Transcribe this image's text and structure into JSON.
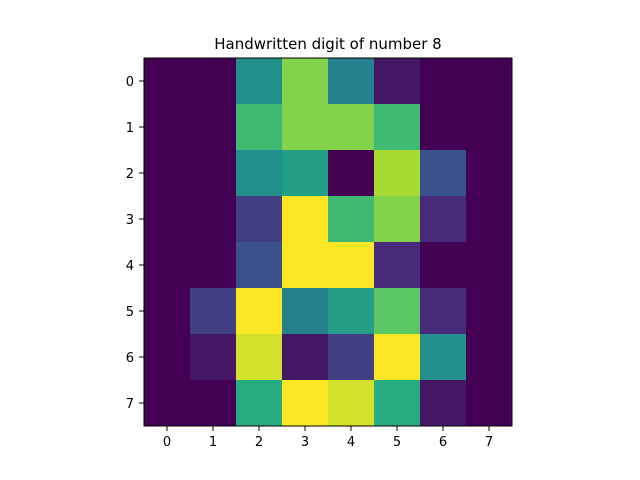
{
  "chart_data": {
    "type": "heatmap",
    "title": "Handwritten digit of number 8",
    "xlabel": "",
    "ylabel": "",
    "x_ticks": [
      "0",
      "1",
      "2",
      "3",
      "4",
      "5",
      "6",
      "7"
    ],
    "y_ticks": [
      "0",
      "1",
      "2",
      "3",
      "4",
      "5",
      "6",
      "7"
    ],
    "colormap": "viridis",
    "value_range": [
      0,
      16
    ],
    "grid": false,
    "values": [
      [
        0,
        0,
        8,
        13,
        7,
        1,
        0,
        0
      ],
      [
        0,
        0,
        11,
        13,
        13,
        11,
        0,
        0
      ],
      [
        0,
        0,
        8,
        9,
        0,
        14,
        4,
        0
      ],
      [
        0,
        0,
        3,
        16,
        11,
        13,
        2,
        0
      ],
      [
        0,
        0,
        4,
        16,
        16,
        2,
        0,
        0
      ],
      [
        0,
        3,
        16,
        7,
        9,
        12,
        2,
        0
      ],
      [
        0,
        1,
        15,
        1,
        3,
        16,
        8,
        0
      ],
      [
        0,
        0,
        10,
        16,
        15,
        10,
        1,
        0
      ]
    ]
  }
}
